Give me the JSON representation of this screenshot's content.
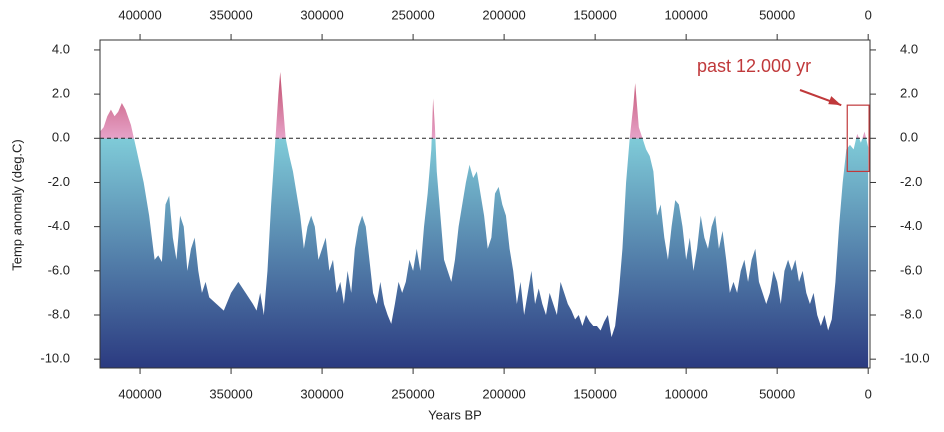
{
  "chart_data": {
    "type": "area",
    "xlabel": "Years BP",
    "ylabel": "Temp anomaly (deg.C)",
    "x": [
      422000,
      420000,
      418000,
      416000,
      414000,
      412000,
      410000,
      408000,
      405000,
      402000,
      398000,
      395000,
      392000,
      390000,
      388000,
      386000,
      384000,
      382000,
      380000,
      378000,
      376000,
      374000,
      372000,
      370000,
      368000,
      366000,
      364000,
      362000,
      358000,
      354000,
      350000,
      346000,
      342000,
      338000,
      336000,
      334000,
      332000,
      330000,
      328000,
      326000,
      324000,
      323000,
      322000,
      320000,
      318000,
      316000,
      314000,
      312000,
      310000,
      308000,
      306000,
      304000,
      302000,
      300000,
      298000,
      296000,
      294000,
      292000,
      290000,
      288000,
      286000,
      284000,
      282000,
      280000,
      278000,
      276000,
      274000,
      272000,
      270000,
      268000,
      266000,
      264000,
      262000,
      260000,
      258000,
      256000,
      254000,
      252000,
      250000,
      248000,
      246000,
      244000,
      242000,
      240000,
      239000,
      238000,
      237000,
      235000,
      233000,
      231000,
      229000,
      227000,
      225000,
      223000,
      221000,
      219000,
      217000,
      215000,
      213000,
      211000,
      209000,
      207000,
      205000,
      203000,
      201000,
      199000,
      197000,
      195000,
      193000,
      191000,
      189000,
      187000,
      185000,
      183000,
      181000,
      179000,
      177000,
      175000,
      173000,
      171000,
      169000,
      167000,
      165000,
      163000,
      161000,
      159000,
      157000,
      155000,
      153000,
      151000,
      149000,
      147000,
      145000,
      143000,
      141000,
      139000,
      137000,
      135000,
      133000,
      131000,
      129000,
      128000,
      127000,
      126000,
      124000,
      122000,
      120000,
      118000,
      116000,
      114000,
      112000,
      110000,
      108000,
      106000,
      104000,
      102000,
      100000,
      98000,
      96000,
      94000,
      92000,
      90000,
      88000,
      86000,
      84000,
      82000,
      80000,
      78000,
      76000,
      74000,
      72000,
      70000,
      68000,
      66000,
      64000,
      62000,
      60000,
      58000,
      56000,
      54000,
      52000,
      50000,
      48000,
      46000,
      44000,
      42000,
      40000,
      38000,
      36000,
      34000,
      32000,
      30000,
      28000,
      26000,
      24000,
      22000,
      20000,
      18000,
      16000,
      14000,
      12000,
      10000,
      8000,
      6000,
      4000,
      2000,
      0
    ],
    "values": [
      0.3,
      0.5,
      1.0,
      1.3,
      1.0,
      1.2,
      1.6,
      1.3,
      0.6,
      -0.5,
      -2.0,
      -3.5,
      -5.5,
      -5.3,
      -5.6,
      -3.0,
      -2.6,
      -4.5,
      -5.5,
      -3.5,
      -4.0,
      -6.0,
      -5.0,
      -4.5,
      -6.0,
      -7.0,
      -6.5,
      -7.2,
      -7.5,
      -7.8,
      -7.0,
      -6.5,
      -7.0,
      -7.5,
      -7.8,
      -7.0,
      -8.0,
      -6.0,
      -3.0,
      -0.5,
      2.0,
      3.0,
      2.0,
      0.0,
      -0.8,
      -1.5,
      -2.5,
      -3.5,
      -5.0,
      -4.0,
      -3.5,
      -4.0,
      -5.5,
      -5.0,
      -4.5,
      -6.0,
      -5.5,
      -7.0,
      -6.5,
      -7.5,
      -6.0,
      -7.0,
      -5.0,
      -4.0,
      -3.5,
      -4.0,
      -5.5,
      -7.0,
      -7.5,
      -6.5,
      -7.5,
      -8.0,
      -8.4,
      -7.5,
      -6.5,
      -7.0,
      -6.5,
      -5.5,
      -6.0,
      -5.0,
      -6.0,
      -4.0,
      -2.5,
      -0.5,
      1.8,
      0.5,
      -1.5,
      -3.5,
      -5.5,
      -6.0,
      -6.5,
      -5.5,
      -4.0,
      -3.0,
      -2.0,
      -1.2,
      -1.8,
      -1.5,
      -2.5,
      -3.5,
      -5.0,
      -4.5,
      -2.5,
      -2.2,
      -3.0,
      -3.5,
      -5.0,
      -6.0,
      -7.5,
      -6.5,
      -8.0,
      -7.0,
      -6.0,
      -7.5,
      -6.8,
      -7.5,
      -8.0,
      -7.0,
      -7.5,
      -8.0,
      -6.5,
      -7.0,
      -7.5,
      -7.8,
      -8.2,
      -8.0,
      -8.5,
      -8.0,
      -8.3,
      -8.5,
      -8.5,
      -8.7,
      -8.3,
      -8.0,
      -9.0,
      -8.5,
      -7.0,
      -5.0,
      -2.0,
      0.0,
      1.5,
      2.5,
      1.5,
      0.5,
      0.0,
      -0.5,
      -0.8,
      -1.5,
      -3.5,
      -3.0,
      -4.5,
      -5.5,
      -4.0,
      -2.8,
      -3.0,
      -4.0,
      -5.5,
      -4.5,
      -6.0,
      -5.0,
      -3.5,
      -4.5,
      -5.0,
      -4.0,
      -3.5,
      -5.0,
      -4.2,
      -5.5,
      -7.0,
      -6.5,
      -7.0,
      -6.0,
      -5.5,
      -6.5,
      -5.5,
      -5.0,
      -6.5,
      -7.0,
      -7.5,
      -7.0,
      -6.0,
      -6.5,
      -7.5,
      -6.0,
      -5.5,
      -6.0,
      -5.5,
      -6.5,
      -6.0,
      -7.0,
      -7.5,
      -7.0,
      -8.0,
      -8.5,
      -8.0,
      -8.7,
      -8.2,
      -6.5,
      -4.0,
      -2.0,
      -0.5,
      -0.3,
      -0.5,
      0.2,
      -0.2,
      0.3,
      -0.4
    ],
    "xlim": [
      422000,
      -1000
    ],
    "ylim": [
      -10.4,
      4.45
    ],
    "xticks": [
      400000,
      350000,
      300000,
      250000,
      200000,
      150000,
      100000,
      50000,
      0
    ],
    "yticks": [
      {
        "value": 4,
        "label": "4.0"
      },
      {
        "value": 2,
        "label": "2.0"
      },
      {
        "value": 0,
        "label": "0.0"
      },
      {
        "value": -2,
        "label": "-2.0"
      },
      {
        "value": -4,
        "label": "-4.0"
      },
      {
        "value": -6,
        "label": "-6.0"
      },
      {
        "value": -8,
        "label": "-8.0"
      },
      {
        "value": -10,
        "label": "-10.0"
      }
    ],
    "reference_line": 0,
    "fill_colors": {
      "below": [
        "#2b3a80",
        "#7fcbd8"
      ],
      "above": [
        "#e6a2c8",
        "#b0243f"
      ]
    },
    "annotation": {
      "text": "past 12.000 yr",
      "color": "#c0393b",
      "box_x": [
        11500,
        -500
      ],
      "box_y": [
        1.5,
        -1.5
      ]
    }
  }
}
